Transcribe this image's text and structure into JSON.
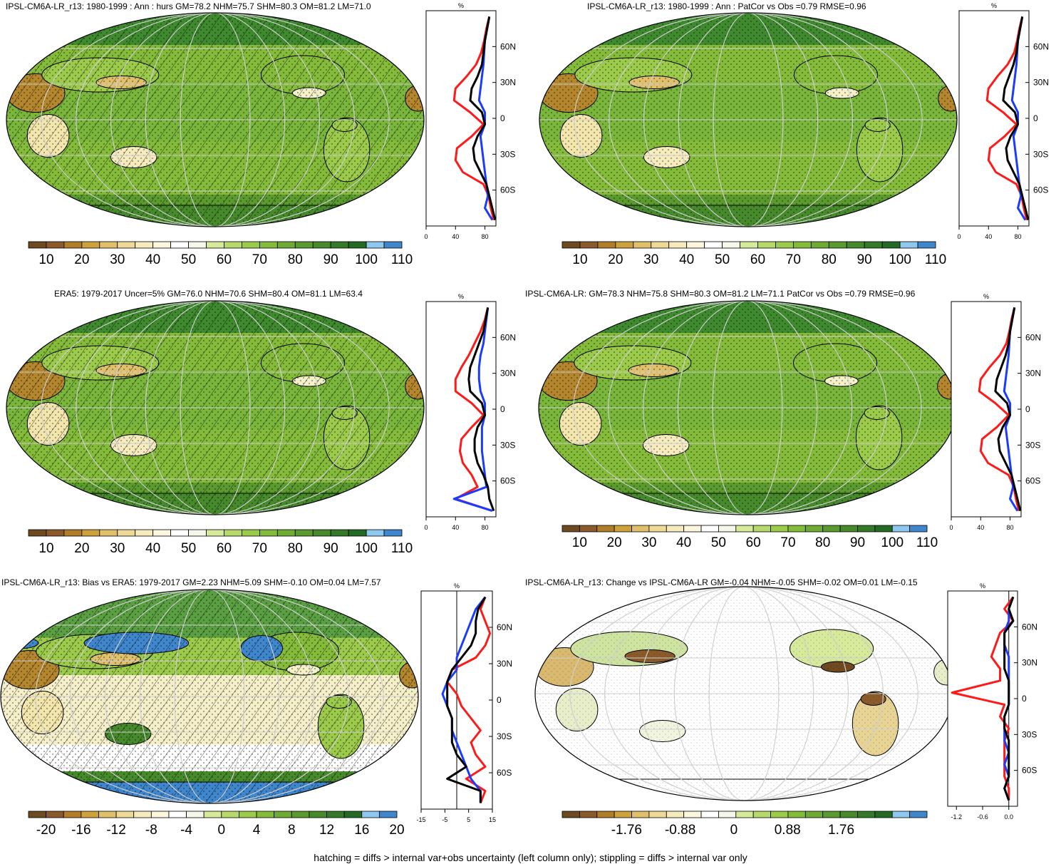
{
  "colors": {
    "palette_abs": [
      "#6f4a20",
      "#8b5a2b",
      "#b07d28",
      "#cda23c",
      "#e0c06a",
      "#efd998",
      "#f6ebbd",
      "#fbf6dd",
      "#ffffff",
      "#f4f7ea",
      "#d7ea9b",
      "#b7d86a",
      "#9ccb4c",
      "#84bb3a",
      "#6faa32",
      "#5a9a2e",
      "#478a2b",
      "#357a28",
      "#256a24",
      "#8ec8ee",
      "#3f86cc"
    ],
    "palette_bias": [
      "#6f4a20",
      "#8b5a2b",
      "#b07d28",
      "#cda23c",
      "#e0c06a",
      "#efd998",
      "#f6ebbd",
      "#fbf6dd",
      "#ffffff",
      "#f4f7ea",
      "#d7ea9b",
      "#b7d86a",
      "#9ccb4c",
      "#84bb3a",
      "#6faa32",
      "#5a9a2e",
      "#478a2b",
      "#357a28",
      "#256a24",
      "#8ec8ee",
      "#3f86cc"
    ],
    "land_green": "#8cc04a",
    "ocean_green": "#7db53e",
    "line_red": "#ff1a1a",
    "line_blue": "#1a3cff",
    "line_black": "#000000"
  },
  "footnote": "hatching = diffs > internal var+obs uncertainty (left column only); stippling = diffs > internal var only",
  "panels": [
    {
      "id": "p1",
      "title": "IPSL-CM6A-LR_r13: 1980-1999 : Ann : hurs GM=78.2 NHM=75.7 SHM=80.3 OM=81.2 LM=71.0",
      "colorbar_labels": [
        "10",
        "20",
        "30",
        "40",
        "50",
        "60",
        "70",
        "80",
        "90",
        "100",
        "110"
      ],
      "zonal_unit": "%",
      "zonal_xticks": [
        "0",
        "40",
        "80"
      ],
      "zonal_yticks": [
        "60N",
        "30N",
        "0",
        "30S",
        "60S"
      ],
      "style": "abs",
      "hatch": true
    },
    {
      "id": "p2",
      "title": "IPSL-CM6A-LR_r13: 1980-1999 : Ann : PatCor vs Obs =0.79 RMSE=0.96",
      "colorbar_labels": [
        "10",
        "20",
        "30",
        "40",
        "50",
        "60",
        "70",
        "80",
        "90",
        "100",
        "110"
      ],
      "zonal_unit": "%",
      "zonal_xticks": [
        "0",
        "40",
        "80"
      ],
      "zonal_yticks": [
        "60N",
        "30N",
        "0",
        "30S",
        "60S"
      ],
      "style": "abs",
      "hatch": false
    },
    {
      "id": "p3",
      "title": "ERA5: 1979-2017 Uncer=5% GM=76.0 NHM=70.6 SHM=80.4 OM=81.1 LM=63.4",
      "colorbar_labels": [
        "10",
        "20",
        "30",
        "40",
        "50",
        "60",
        "70",
        "80",
        "90",
        "100",
        "110"
      ],
      "zonal_unit": "%",
      "zonal_xticks": [
        "0",
        "40",
        "80"
      ],
      "zonal_yticks": [
        "60N",
        "30N",
        "0",
        "30S",
        "60S"
      ],
      "style": "abs",
      "hatch": true
    },
    {
      "id": "p4",
      "title": "IPSL-CM6A-LR: GM=78.3 NHM=75.8 SHM=80.3 OM=81.2 LM=71.1 PatCor vs Obs =0.79 RMSE=0.96",
      "colorbar_labels": [
        "10",
        "20",
        "30",
        "40",
        "50",
        "60",
        "70",
        "80",
        "90",
        "100",
        "110"
      ],
      "zonal_unit": "%",
      "zonal_xticks": [
        "0",
        "40",
        "80"
      ],
      "zonal_yticks": [
        "60N",
        "30N",
        "0",
        "30S",
        "60S"
      ],
      "style": "abs",
      "hatch": false
    },
    {
      "id": "p5",
      "title": "IPSL-CM6A-LR_r13: Bias vs ERA5: 1979-2017 GM=2.23 NHM=5.09 SHM=-0.10 OM=0.04 LM=7.57",
      "colorbar_labels": [
        "-20",
        "-16",
        "-12",
        "-8",
        "-4",
        "0",
        "4",
        "8",
        "12",
        "16",
        "20"
      ],
      "zonal_unit": "%",
      "zonal_xticks": [
        "-15",
        "-5",
        "5",
        "15"
      ],
      "zonal_yticks": [
        "60N",
        "30N",
        "0",
        "30S",
        "60S"
      ],
      "style": "bias",
      "hatch": true
    },
    {
      "id": "p6",
      "title": "IPSL-CM6A-LR_r13: Change vs IPSL-CM6A-LR GM=-0.04 NHM=-0.05 SHM=-0.02 OM=0.01 LM=-0.15",
      "colorbar_labels": [
        "-1.76",
        "-0.88",
        "0",
        "0.88",
        "1.76"
      ],
      "zonal_unit": "%",
      "zonal_xticks": [
        "-1.2",
        "-0.6",
        "0.0"
      ],
      "zonal_yticks": [
        "60N",
        "30N",
        "0",
        "30S",
        "60S"
      ],
      "style": "change",
      "hatch": false
    }
  ],
  "chart_data": [
    {
      "type": "line",
      "title": "IPSL-CM6A-LR_r13: 1980-1999 : Ann : hurs GM=78.2 NHM=75.7 SHM=80.3 OM=81.2 LM=71.0",
      "y": [
        85,
        75,
        65,
        55,
        45,
        35,
        25,
        15,
        5,
        -5,
        -15,
        -25,
        -35,
        -45,
        -55,
        -65,
        -75,
        -85
      ],
      "series": [
        {
          "color": "red",
          "values": [
            86,
            82,
            79,
            75,
            68,
            55,
            40,
            38,
            60,
            78,
            62,
            42,
            40,
            50,
            78,
            85,
            88,
            92
          ]
        },
        {
          "color": "blue",
          "values": [
            86,
            83,
            80,
            79,
            78,
            76,
            74,
            72,
            80,
            80,
            74,
            76,
            78,
            80,
            82,
            84,
            80,
            90
          ]
        },
        {
          "color": "black",
          "values": [
            86,
            83,
            80,
            78,
            76,
            70,
            62,
            60,
            76,
            80,
            70,
            64,
            66,
            74,
            82,
            86,
            90,
            94
          ]
        }
      ],
      "xlim": [
        0,
        95
      ],
      "ylim": [
        -90,
        90
      ]
    },
    {
      "type": "line",
      "title": "IPSL-CM6A-LR_r13: 1980-1999 : Ann : PatCor vs Obs =0.79 RMSE=0.96",
      "y": [
        85,
        75,
        65,
        55,
        45,
        35,
        25,
        15,
        5,
        -5,
        -15,
        -25,
        -35,
        -45,
        -55,
        -65,
        -75,
        -85
      ],
      "series": [
        {
          "color": "red",
          "values": [
            86,
            82,
            79,
            75,
            66,
            52,
            40,
            38,
            60,
            78,
            62,
            42,
            40,
            50,
            78,
            85,
            88,
            92
          ]
        },
        {
          "color": "blue",
          "values": [
            86,
            83,
            80,
            79,
            78,
            76,
            74,
            72,
            80,
            80,
            74,
            76,
            78,
            80,
            82,
            84,
            80,
            90
          ]
        },
        {
          "color": "black",
          "values": [
            86,
            83,
            80,
            78,
            74,
            68,
            62,
            60,
            76,
            80,
            70,
            64,
            66,
            74,
            82,
            86,
            90,
            94
          ]
        }
      ],
      "xlim": [
        0,
        95
      ],
      "ylim": [
        -90,
        90
      ]
    },
    {
      "type": "line",
      "title": "ERA5: 1979-2017 Uncer=5% GM=76.0 NHM=70.6 SHM=80.4 OM=81.1 LM=63.4",
      "y": [
        85,
        75,
        65,
        55,
        45,
        35,
        25,
        15,
        5,
        -5,
        -15,
        -25,
        -35,
        -45,
        -55,
        -65,
        -75,
        -85
      ],
      "series": [
        {
          "color": "red",
          "values": [
            84,
            80,
            74,
            66,
            58,
            48,
            40,
            40,
            62,
            78,
            62,
            48,
            46,
            50,
            62,
            70,
            40,
            90
          ]
        },
        {
          "color": "blue",
          "values": [
            84,
            82,
            80,
            78,
            74,
            72,
            72,
            74,
            80,
            80,
            76,
            76,
            76,
            78,
            80,
            82,
            38,
            90
          ]
        },
        {
          "color": "black",
          "values": [
            84,
            81,
            78,
            72,
            66,
            60,
            58,
            60,
            76,
            80,
            70,
            66,
            66,
            70,
            78,
            84,
            86,
            92
          ]
        }
      ],
      "xlim": [
        0,
        95
      ],
      "ylim": [
        -90,
        90
      ]
    },
    {
      "type": "line",
      "title": "IPSL-CM6A-LR: GM=78.3 NHM=75.8 SHM=80.3 OM=81.2 LM=71.1 PatCor vs Obs =0.79 RMSE=0.96",
      "y": [
        85,
        75,
        65,
        55,
        45,
        35,
        25,
        15,
        5,
        -5,
        -15,
        -25,
        -35,
        -45,
        -55,
        -65,
        -75,
        -85
      ],
      "series": [
        {
          "color": "red",
          "values": [
            86,
            82,
            79,
            75,
            66,
            52,
            40,
            38,
            60,
            78,
            62,
            42,
            40,
            50,
            78,
            85,
            88,
            92
          ]
        },
        {
          "color": "blue",
          "values": [
            86,
            83,
            80,
            79,
            78,
            76,
            74,
            72,
            80,
            80,
            74,
            76,
            78,
            80,
            82,
            84,
            80,
            90
          ]
        },
        {
          "color": "black",
          "values": [
            86,
            83,
            80,
            78,
            74,
            68,
            62,
            60,
            76,
            80,
            70,
            64,
            66,
            74,
            82,
            86,
            90,
            94
          ]
        }
      ],
      "xlim": [
        0,
        95
      ],
      "ylim": [
        -90,
        90
      ]
    },
    {
      "type": "line",
      "title": "IPSL-CM6A-LR_r13: Bias vs ERA5: 1979-2017 GM=2.23 NHM=5.09 SHM=-0.10 OM=0.04 LM=7.57",
      "y": [
        85,
        75,
        65,
        55,
        45,
        35,
        25,
        15,
        5,
        -5,
        -15,
        -25,
        -35,
        -45,
        -55,
        -65,
        -75,
        -85
      ],
      "series": [
        {
          "color": "red",
          "values": [
            12,
            10,
            12,
            14,
            12,
            8,
            -2,
            -4,
            0,
            2,
            6,
            10,
            6,
            8,
            12,
            4,
            12,
            10
          ]
        },
        {
          "color": "blue",
          "values": [
            12,
            8,
            6,
            4,
            2,
            0,
            0,
            -4,
            -6,
            -4,
            -2,
            -2,
            0,
            2,
            4,
            6,
            10,
            10
          ]
        },
        {
          "color": "black",
          "values": [
            12,
            9,
            8,
            8,
            6,
            2,
            -2,
            -4,
            -4,
            -4,
            -2,
            -2,
            -2,
            0,
            4,
            -4,
            10,
            10
          ]
        }
      ],
      "xlim": [
        -15,
        15
      ],
      "ylim": [
        -90,
        90
      ]
    },
    {
      "type": "line",
      "title": "IPSL-CM6A-LR_r13: Change vs IPSL-CM6A-LR GM=-0.04 NHM=-0.05 SHM=-0.02 OM=0.01 LM=-0.15",
      "y": [
        85,
        75,
        65,
        55,
        45,
        35,
        25,
        15,
        5,
        -5,
        -15,
        -25,
        -35,
        -45,
        -55,
        -65,
        -75,
        -85
      ],
      "series": [
        {
          "color": "red",
          "values": [
            0.1,
            -0.1,
            0.1,
            -0.2,
            -0.3,
            -0.4,
            -0.2,
            -0.2,
            -1.3,
            -0.1,
            -0.2,
            0.0,
            -0.1,
            -0.1,
            -0.1,
            -0.1,
            0.0,
            0.0
          ]
        },
        {
          "color": "blue",
          "values": [
            0.1,
            0.0,
            0.0,
            -0.1,
            -0.1,
            0.0,
            0.0,
            0.0,
            0.0,
            0.0,
            -0.1,
            -0.1,
            -0.1,
            0.0,
            -0.1,
            0.0,
            -0.1,
            0.0
          ]
        },
        {
          "color": "black",
          "values": [
            0.1,
            0.0,
            0.1,
            -0.1,
            -0.1,
            -0.1,
            -0.1,
            0.0,
            0.0,
            0.0,
            -0.1,
            -0.1,
            0.0,
            0.0,
            0.0,
            0.0,
            -0.1,
            0.0
          ]
        }
      ],
      "xlim": [
        -1.4,
        0.2
      ],
      "ylim": [
        -90,
        90
      ]
    }
  ]
}
